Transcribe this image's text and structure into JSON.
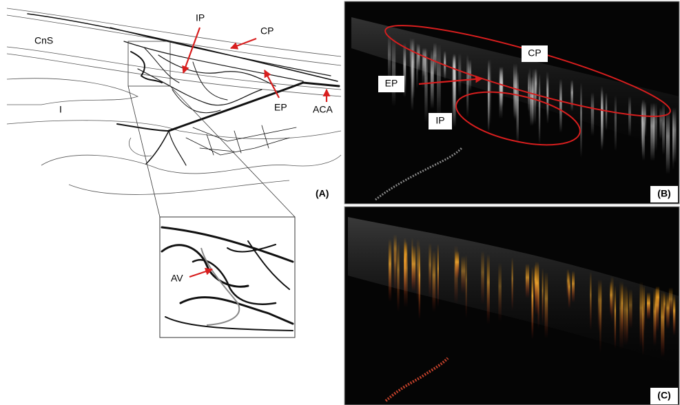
{
  "panel_a": {
    "labels": {
      "cns": "CnS",
      "ip": "IP",
      "cp": "CP",
      "ep": "EP",
      "aca": "ACA",
      "iris": "I",
      "av": "AV"
    },
    "panel_label": "(A)"
  },
  "panel_b": {
    "labels": {
      "cp": "CP",
      "ep": "EP",
      "ip": "IP"
    },
    "panel_label": "(B)"
  },
  "panel_c": {
    "panel_label": "(C)"
  }
}
